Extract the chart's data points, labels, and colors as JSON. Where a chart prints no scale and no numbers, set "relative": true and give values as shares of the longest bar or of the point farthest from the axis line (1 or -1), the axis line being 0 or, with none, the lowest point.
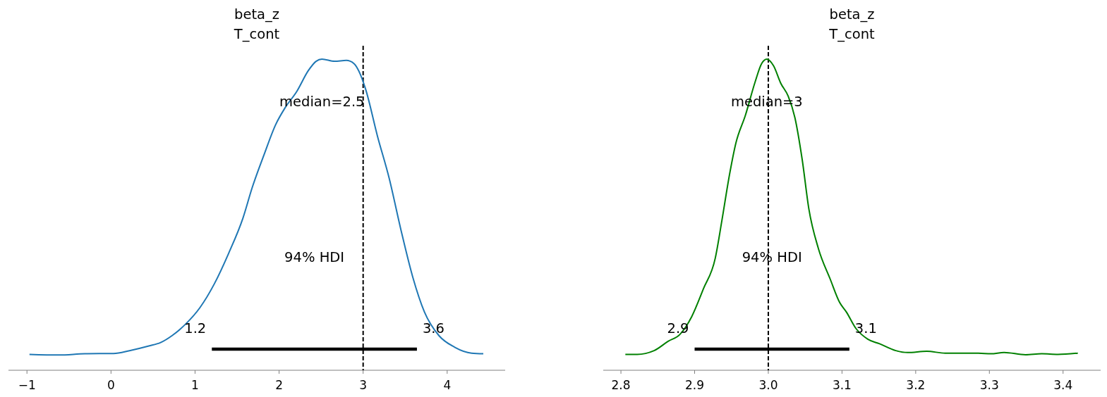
{
  "chart_data": [
    {
      "type": "line",
      "title": "beta_z",
      "subtitle": "T_cont",
      "relative": true,
      "xlim": [
        -1.22,
        4.69
      ],
      "xticks": [
        {
          "value": -1,
          "label": "−1"
        },
        0,
        1,
        2,
        3,
        4
      ],
      "series": [
        {
          "color": "#1f77b4",
          "x": [
            -0.97,
            -0.62,
            -0.31,
            0.03,
            0.22,
            0.45,
            0.59,
            0.73,
            0.89,
            1.06,
            1.23,
            1.4,
            1.57,
            1.68,
            1.82,
            1.96,
            2.07,
            2.21,
            2.35,
            2.44,
            2.51,
            2.66,
            2.8,
            2.89,
            2.97,
            3.03,
            3.17,
            3.31,
            3.45,
            3.59,
            3.73,
            3.9,
            4.09,
            4.29,
            4.43
          ],
          "values": [
            0.051,
            0.049,
            0.053,
            0.054,
            0.063,
            0.078,
            0.089,
            0.112,
            0.149,
            0.202,
            0.278,
            0.376,
            0.489,
            0.587,
            0.692,
            0.79,
            0.843,
            0.896,
            0.964,
            0.993,
            1,
            0.993,
            0.996,
            0.986,
            0.949,
            0.903,
            0.753,
            0.617,
            0.451,
            0.3,
            0.187,
            0.112,
            0.074,
            0.055,
            0.053
          ]
        },
        {
          "type": "line",
          "color": "#000000",
          "x": [
            1.2,
            3.64
          ],
          "values": [
            0.068,
            0.068
          ]
        }
      ],
      "ref_lines": [
        {
          "axis": "x",
          "value": 3,
          "color": "#000000",
          "line_style": "dashed"
        }
      ],
      "annotations": [
        "median=2.5",
        "94% HDI",
        "1.2",
        "3.6"
      ]
    },
    {
      "type": "line",
      "title": "beta_z",
      "subtitle": "T_cont",
      "relative": true,
      "xlim": [
        2.776,
        3.451
      ],
      "xticks": [
        2.8,
        2.9,
        {
          "value": 3,
          "label": "3.0"
        },
        3.1,
        3.2,
        3.3,
        3.4
      ],
      "series": [
        {
          "color": "#008000",
          "x": [
            2.806,
            2.822,
            2.845,
            2.864,
            2.88,
            2.896,
            2.912,
            2.928,
            2.937,
            2.947,
            2.956,
            2.969,
            2.982,
            2.991,
            2.998,
            3.007,
            3.017,
            3.027,
            3.036,
            3.046,
            3.055,
            3.068,
            3.084,
            3.097,
            3.106,
            3.119,
            3.135,
            3.151,
            3.173,
            3.189,
            3.215,
            3.24,
            3.285,
            3.302,
            3.32,
            3.349,
            3.371,
            3.393,
            3.42
          ],
          "values": [
            0.051,
            0.051,
            0.063,
            0.093,
            0.115,
            0.172,
            0.262,
            0.36,
            0.481,
            0.624,
            0.73,
            0.82,
            0.926,
            0.986,
            1,
            0.979,
            0.922,
            0.881,
            0.813,
            0.677,
            0.519,
            0.391,
            0.293,
            0.217,
            0.187,
            0.134,
            0.1,
            0.085,
            0.063,
            0.057,
            0.061,
            0.055,
            0.055,
            0.053,
            0.057,
            0.05,
            0.053,
            0.051,
            0.055
          ]
        },
        {
          "type": "line",
          "color": "#000000",
          "x": [
            2.9,
            3.11
          ],
          "values": [
            0.068,
            0.068
          ]
        }
      ],
      "ref_lines": [
        {
          "axis": "x",
          "value": 3,
          "color": "#000000",
          "line_style": "dashed"
        }
      ],
      "annotations": [
        "median=3",
        "94% HDI",
        "2.9",
        "3.1"
      ]
    }
  ]
}
